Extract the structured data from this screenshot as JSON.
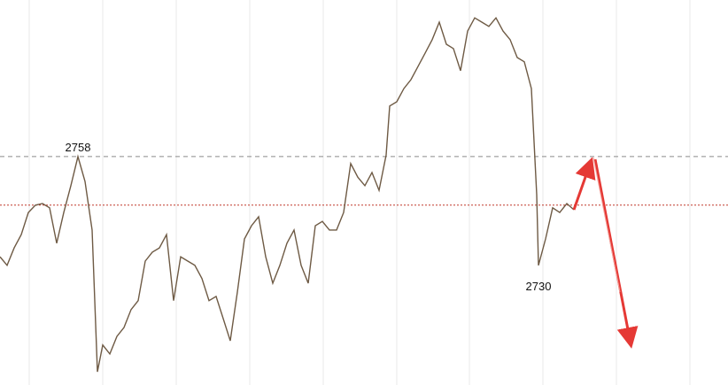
{
  "chart_data": {
    "type": "line",
    "series": [
      {
        "color": "#6e5a44",
        "x": [
          0,
          4,
          8,
          12,
          16,
          20,
          24,
          28,
          32,
          36,
          40,
          44,
          48,
          52,
          55,
          58,
          62,
          66,
          70,
          74,
          78,
          82,
          86,
          90,
          94,
          98,
          102,
          106,
          110,
          114,
          118,
          122,
          126,
          130,
          134,
          138,
          142,
          146,
          150,
          154,
          158,
          162,
          166,
          170,
          174,
          178,
          182,
          186,
          190,
          194,
          198,
          202,
          206,
          210,
          214,
          218,
          220,
          224,
          228,
          232,
          236,
          240,
          244,
          248,
          252,
          256,
          260,
          264,
          268,
          272,
          276,
          280,
          284,
          288,
          292,
          296,
          300,
          303,
          304,
          308,
          312,
          316,
          320,
          324
        ],
        "values": [
          2732.2,
          2730.0,
          2734.5,
          2737.9,
          2743.6,
          2745.5,
          2745.9,
          2744.8,
          2735.7,
          2743.6,
          2750.5,
          2758,
          2751.6,
          2739.1,
          2702.6,
          2709.5,
          2707.2,
          2711.7,
          2714.0,
          2718.6,
          2720.9,
          2731.1,
          2733.4,
          2734.5,
          2737.9,
          2720.9,
          2732.2,
          2731.1,
          2730.0,
          2726.6,
          2720.9,
          2722.0,
          2716.3,
          2710.6,
          2723.1,
          2736.8,
          2740.2,
          2742.5,
          2732.2,
          2725.4,
          2730.0,
          2735.7,
          2739.1,
          2730.0,
          2725.4,
          2740.2,
          2741.3,
          2739.1,
          2739.1,
          2743.6,
          2756.2,
          2752.7,
          2750.5,
          2753.9,
          2749.3,
          2758.4,
          2771.0,
          2772.1,
          2775.5,
          2777.8,
          2781.2,
          2784.6,
          2788.1,
          2792.6,
          2786.9,
          2785.8,
          2780.1,
          2790.3,
          2793.7,
          2792.6,
          2791.5,
          2793.7,
          2790.3,
          2788.1,
          2783.5,
          2782.4,
          2775.5,
          2748.2,
          2730,
          2736.8,
          2744.8,
          2743.6,
          2745.9,
          2744.3
        ]
      }
    ],
    "xlim": [
      0,
      411
    ],
    "ylim": [
      2699.2,
      2798.3
    ],
    "hlines": [
      {
        "value": 2758,
        "style": "dashed",
        "color": "#8a8a8a"
      },
      {
        "value": 2745.5,
        "style": "dotted",
        "color": "#c0392b"
      }
    ],
    "annotations": [
      {
        "text": "2758",
        "x": 44,
        "y": 2758,
        "position": "above"
      },
      {
        "text": "2730",
        "x": 304,
        "y": 2730,
        "position": "below"
      }
    ]
  }
}
